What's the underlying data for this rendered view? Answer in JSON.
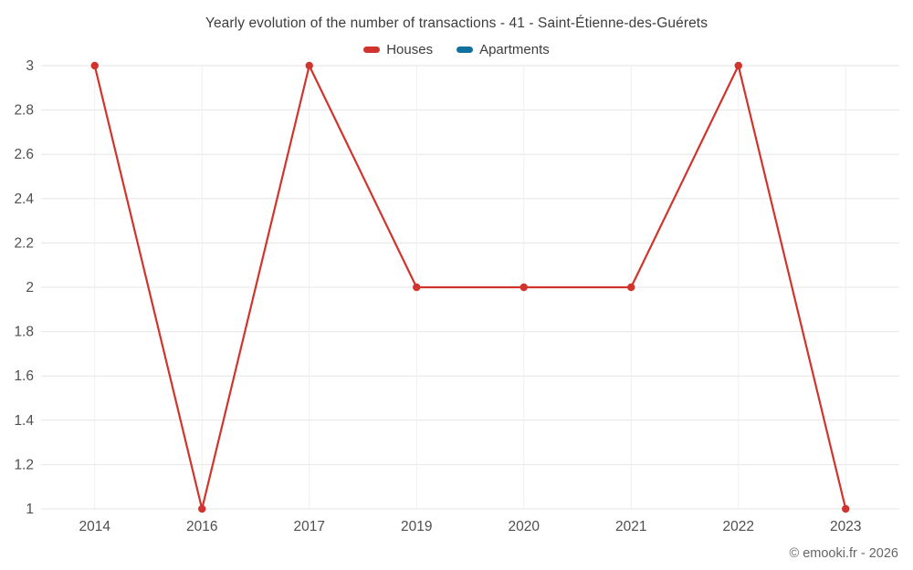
{
  "chart_data": {
    "type": "line",
    "title": "Yearly evolution of the number of transactions - 41 - Saint-Étienne-des-Guérets",
    "categories": [
      "2014",
      "2016",
      "2017",
      "2019",
      "2020",
      "2021",
      "2022",
      "2023"
    ],
    "series": [
      {
        "name": "Houses",
        "color": "#d0342c",
        "values": [
          3,
          1,
          3,
          2,
          2,
          2,
          3,
          1
        ]
      },
      {
        "name": "Apartments",
        "color": "#10719e",
        "values": []
      }
    ],
    "ylim": [
      1,
      3
    ],
    "ytick_step": 0.2,
    "grid": true,
    "legend_position": "top"
  },
  "footer": {
    "credit": "© emooki.fr - 2026"
  },
  "colors": {
    "grid_line": "#e6e6e6",
    "axis_text": "#4f4f4f"
  }
}
